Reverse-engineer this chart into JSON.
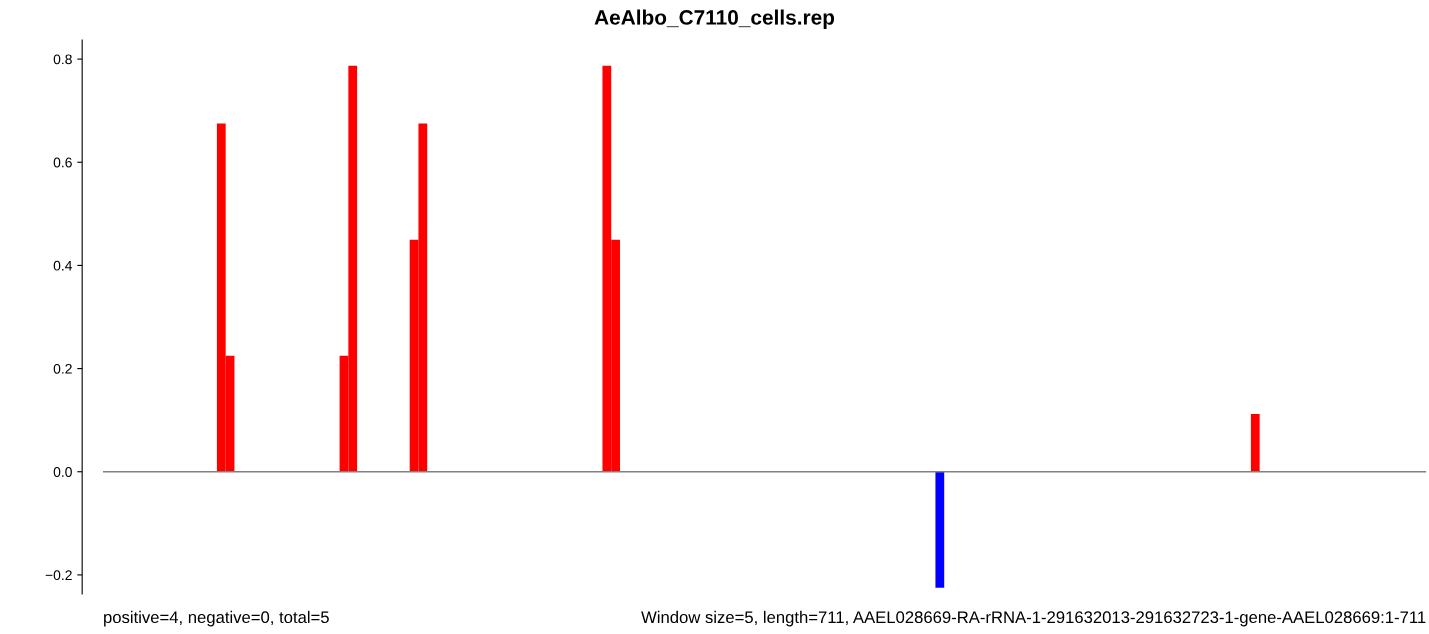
{
  "chart_data": {
    "type": "bar",
    "title": "AeAlbo_C7110_cells.rep",
    "categories": [
      null,
      null,
      null,
      null,
      null,
      null,
      null,
      null,
      null,
      null,
      null,
      null,
      null,
      null,
      null,
      null,
      null,
      null,
      null,
      null,
      null,
      null,
      null,
      null,
      null,
      null,
      null,
      null,
      null,
      null,
      null,
      null,
      null,
      null,
      null,
      null,
      null,
      null,
      null,
      null,
      null,
      null,
      null,
      null,
      null,
      null,
      null,
      null,
      null,
      null,
      null,
      null,
      null,
      null,
      null,
      null,
      null,
      null,
      null,
      null,
      null,
      null,
      null,
      null,
      null,
      null,
      null,
      null,
      null,
      null,
      null,
      null,
      null,
      null,
      null,
      null,
      null,
      null,
      null,
      null,
      null,
      null,
      null,
      null,
      null,
      null,
      null,
      null,
      null,
      null,
      null,
      null,
      null,
      null,
      null,
      null,
      null,
      null,
      null,
      null,
      null,
      null,
      null,
      null,
      null,
      null,
      null,
      null,
      null,
      null,
      null,
      null,
      null,
      null,
      null,
      null,
      null,
      null,
      null,
      null,
      null,
      null,
      null,
      null,
      null,
      null,
      null,
      null,
      null,
      null,
      null,
      null,
      null,
      null,
      null,
      null,
      null,
      null,
      null,
      null,
      null,
      null,
      null,
      null,
      null,
      null,
      null,
      null,
      null,
      null,
      null
    ],
    "series": [
      {
        "color": "#ff0000",
        "values": [
          null,
          null,
          null,
          null,
          null,
          null,
          null,
          null,
          null,
          null,
          null,
          null,
          null,
          0.675,
          0.225,
          null,
          null,
          null,
          null,
          null,
          null,
          null,
          null,
          null,
          null,
          null,
          null,
          0.225,
          0.787,
          null,
          null,
          null,
          null,
          null,
          null,
          0.45,
          0.675,
          null,
          null,
          null,
          null,
          null,
          null,
          null,
          null,
          null,
          null,
          null,
          null,
          null,
          null,
          null,
          null,
          null,
          null,
          null,
          null,
          0.787,
          0.45,
          null,
          null,
          null,
          null,
          null,
          null,
          null,
          null,
          null,
          null,
          null,
          null,
          null,
          null,
          null,
          null,
          null,
          null,
          null,
          null,
          null,
          null,
          null,
          null,
          null,
          null,
          null,
          null,
          null,
          null,
          null,
          null,
          null,
          null,
          null,
          null,
          null,
          null,
          null,
          null,
          null,
          null,
          null,
          null,
          null,
          null,
          null,
          null,
          null,
          null,
          null,
          null,
          null,
          null,
          null,
          null,
          null,
          null,
          null,
          null,
          null,
          null,
          null,
          null,
          null,
          null,
          null,
          null,
          null,
          null,
          null,
          null,
          0.112,
          null,
          null,
          null,
          null,
          null,
          null,
          null,
          null,
          null,
          null,
          null,
          null,
          null,
          null,
          null,
          null,
          null,
          null,
          null
        ]
      },
      {
        "color": "#0000ff",
        "values": [
          null,
          null,
          null,
          null,
          null,
          null,
          null,
          null,
          null,
          null,
          null,
          null,
          null,
          null,
          null,
          null,
          null,
          null,
          null,
          null,
          null,
          null,
          null,
          null,
          null,
          null,
          null,
          null,
          null,
          null,
          null,
          null,
          null,
          null,
          null,
          null,
          null,
          null,
          null,
          null,
          null,
          null,
          null,
          null,
          null,
          null,
          null,
          null,
          null,
          null,
          null,
          null,
          null,
          null,
          null,
          null,
          null,
          null,
          null,
          null,
          null,
          null,
          null,
          null,
          null,
          null,
          null,
          null,
          null,
          null,
          null,
          null,
          null,
          null,
          null,
          null,
          null,
          null,
          null,
          null,
          null,
          null,
          null,
          null,
          null,
          null,
          null,
          null,
          null,
          null,
          null,
          null,
          null,
          null,
          null,
          -0.225,
          null,
          null,
          null,
          null,
          null,
          null,
          null,
          null,
          null,
          null,
          null,
          null,
          null,
          null,
          null,
          null,
          null,
          null,
          null,
          null,
          null,
          null,
          null,
          null,
          null,
          null,
          null,
          null,
          null,
          null,
          null,
          null,
          null,
          null,
          null,
          null,
          null,
          null,
          null,
          null,
          null,
          null,
          null,
          null,
          null,
          null,
          null,
          null,
          null,
          null,
          null,
          null,
          null,
          null,
          null
        ]
      }
    ],
    "ylim": [
      -0.237,
      0.837
    ],
    "yticks": [
      {
        "value": -0.2,
        "label": "−0.2"
      },
      {
        "value": 0.0,
        "label": "0.0"
      },
      {
        "value": 0.2,
        "label": "0.2"
      },
      {
        "value": 0.4,
        "label": "0.4"
      },
      {
        "value": 0.6,
        "label": "0.6"
      },
      {
        "value": 0.8,
        "label": "0.8"
      }
    ],
    "ref_lines": [
      {
        "axis": "y",
        "value": 0,
        "color": "#808080"
      }
    ],
    "annotations": [
      "positive=4, negative=0, total=5",
      "Window size=5, length=711, AAEL028669-RA-rRNA-1-291632013-291632723-1-gene-AAEL028669:1-711"
    ]
  }
}
